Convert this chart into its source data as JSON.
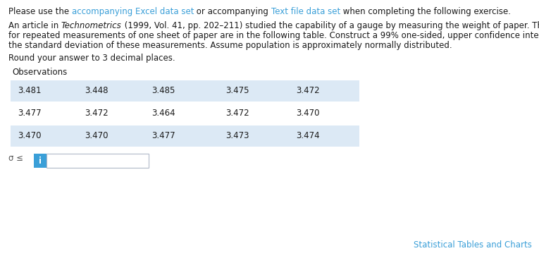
{
  "white_bg": "#ffffff",
  "link_color": "#3a9fd8",
  "text_color": "#1a1a1a",
  "row_bg_color": "#dce9f5",
  "footer_color": "#3a9fd8",
  "info_box_color": "#3a9fd8",
  "info_text_color": "#ffffff",
  "sigma_color": "#555555",
  "table_rows": [
    [
      "3.481",
      "3.448",
      "3.485",
      "3.475",
      "3.472"
    ],
    [
      "3.477",
      "3.472",
      "3.464",
      "3.472",
      "3.470"
    ],
    [
      "3.470",
      "3.470",
      "3.477",
      "3.473",
      "3.474"
    ]
  ],
  "shaded_rows": [
    0,
    2
  ],
  "fontsize": 8.5,
  "fontfamily": "DejaVu Sans"
}
